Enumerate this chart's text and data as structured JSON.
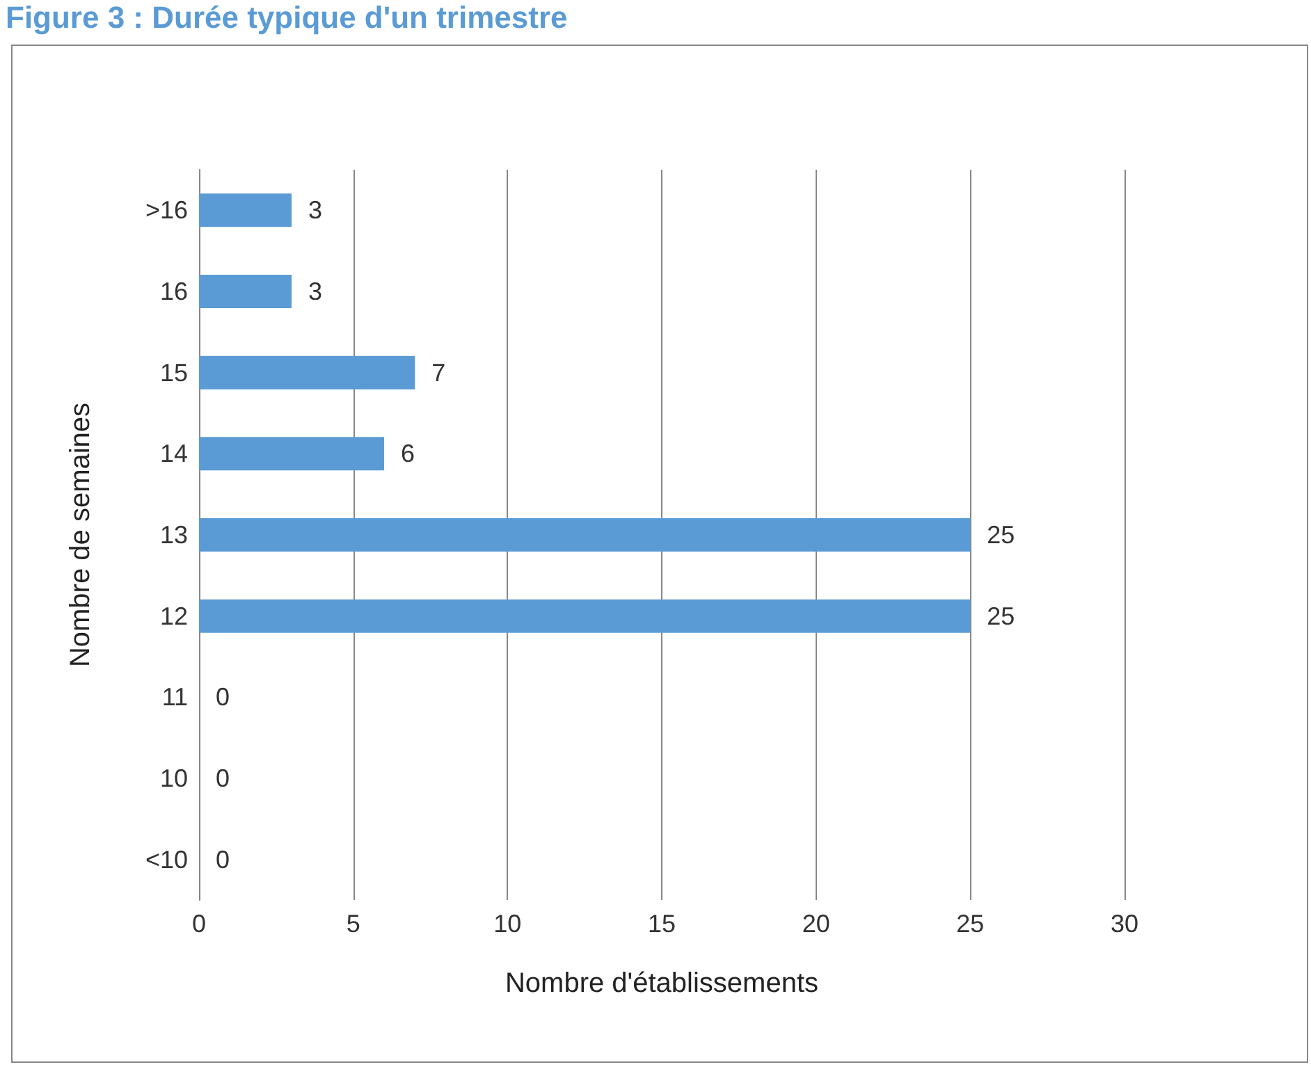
{
  "chart_data": {
    "type": "bar",
    "orientation": "horizontal",
    "title": "Figure 3 : Durée typique d'un trimestre",
    "xlabel": "Nombre d'établissements",
    "ylabel": "Nombre de semaines",
    "categories": [
      ">16",
      "16",
      "15",
      "14",
      "13",
      "12",
      "11",
      "10",
      "<10"
    ],
    "values": [
      3,
      3,
      7,
      6,
      25,
      25,
      0,
      0,
      0
    ],
    "color": "#5b9bd5",
    "xlim": [
      0,
      30
    ],
    "xticks": [
      0,
      5,
      10,
      15,
      20,
      25,
      30
    ],
    "grid": "x",
    "data_labels": true
  }
}
